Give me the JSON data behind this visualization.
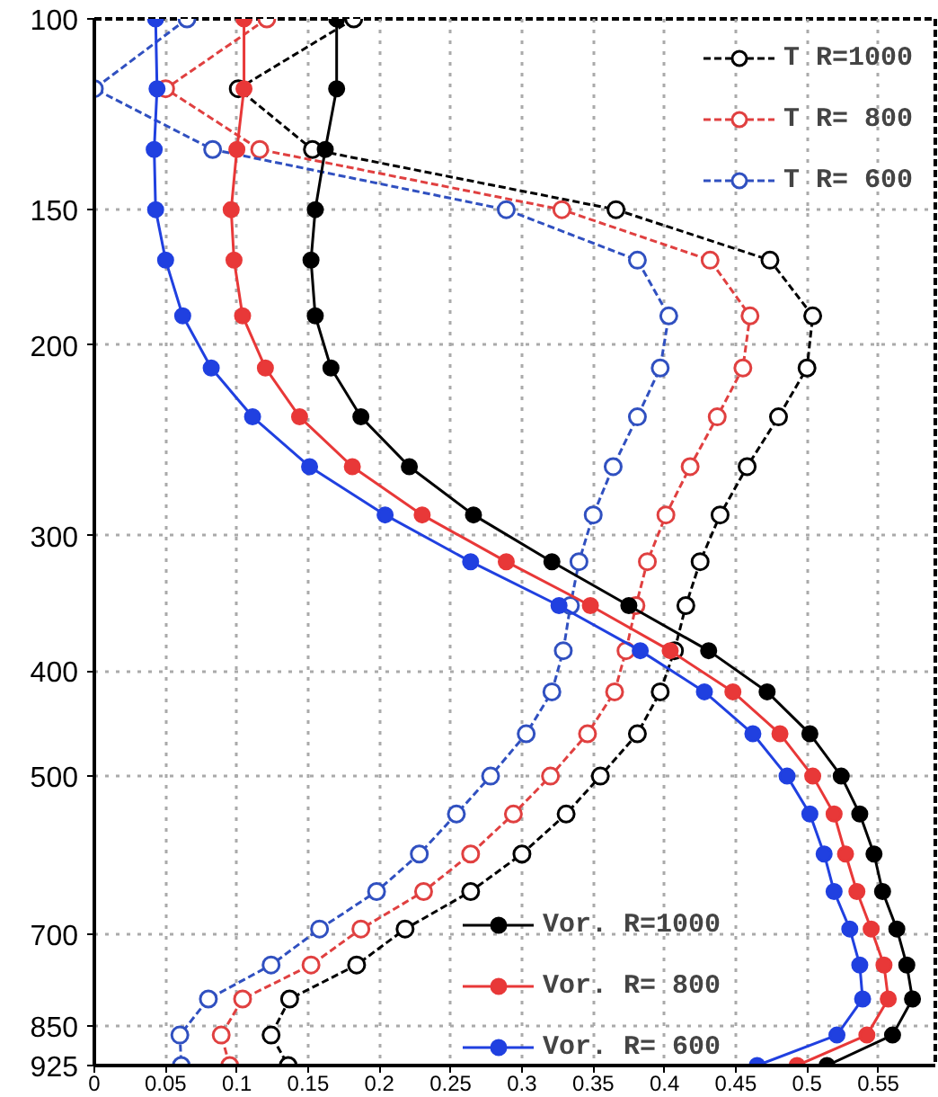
{
  "chart_data": {
    "type": "line",
    "xlim": [
      0,
      0.59
    ],
    "ylim": [
      925,
      100
    ],
    "log": "y",
    "grid": true,
    "legend": "right",
    "marker": "circle",
    "xticks": [
      0,
      0.05,
      0.1,
      0.15,
      0.2,
      0.25,
      0.3,
      0.35,
      0.4,
      0.45,
      0.5,
      0.55
    ],
    "yticks": [
      100,
      150,
      200,
      300,
      400,
      500,
      700,
      850,
      925
    ],
    "series": [
      {
        "name": "T R=1000",
        "color": "#000000",
        "line_style": "dashed",
        "x": [
          0.182,
          0.101,
          0.153,
          0.366,
          0.474,
          0.504,
          0.5,
          0.48,
          0.458,
          0.439,
          0.425,
          0.415,
          0.407,
          0.397,
          0.381,
          0.355,
          0.331,
          0.3,
          0.264,
          0.218,
          0.184,
          0.137,
          0.124,
          0.136
        ],
        "values": [
          100,
          116,
          132,
          150,
          167,
          188,
          210,
          233,
          259,
          287,
          317,
          348,
          383,
          418,
          457,
          500,
          542,
          590,
          639,
          692,
          747,
          803,
          867,
          925
        ]
      },
      {
        "name": "T R= 800",
        "color": "#e04040",
        "line_style": "dashed",
        "x": [
          0.121,
          0.05,
          0.116,
          0.328,
          0.432,
          0.46,
          0.455,
          0.437,
          0.418,
          0.401,
          0.388,
          0.38,
          0.373,
          0.365,
          0.346,
          0.32,
          0.294,
          0.264,
          0.231,
          0.187,
          0.152,
          0.104,
          0.089,
          0.095
        ],
        "values": [
          100,
          116,
          132,
          150,
          167,
          188,
          210,
          233,
          259,
          287,
          317,
          348,
          383,
          418,
          457,
          500,
          542,
          590,
          639,
          692,
          747,
          803,
          867,
          925
        ]
      },
      {
        "name": "T R= 600",
        "color": "#3050c0",
        "line_style": "dashed",
        "x": [
          0.065,
          0.0,
          0.083,
          0.289,
          0.381,
          0.403,
          0.397,
          0.381,
          0.364,
          0.35,
          0.34,
          0.334,
          0.329,
          0.321,
          0.303,
          0.278,
          0.254,
          0.228,
          0.198,
          0.158,
          0.124,
          0.08,
          0.06,
          0.061
        ],
        "values": [
          100,
          116,
          132,
          150,
          167,
          188,
          210,
          233,
          259,
          287,
          317,
          348,
          383,
          418,
          457,
          500,
          542,
          590,
          639,
          692,
          747,
          803,
          867,
          925
        ]
      },
      {
        "name": "Vor. R=1000",
        "color": "#000000",
        "line_style": "solid",
        "x": [
          0.17,
          0.17,
          0.162,
          0.155,
          0.152,
          0.155,
          0.166,
          0.187,
          0.221,
          0.266,
          0.321,
          0.375,
          0.431,
          0.472,
          0.502,
          0.524,
          0.537,
          0.547,
          0.553,
          0.563,
          0.57,
          0.574,
          0.56,
          0.514
        ],
        "values": [
          100,
          116,
          132,
          150,
          167,
          188,
          210,
          233,
          259,
          287,
          317,
          348,
          383,
          418,
          457,
          500,
          542,
          590,
          639,
          692,
          747,
          803,
          867,
          925
        ]
      },
      {
        "name": "Vor. R= 800",
        "color": "#e83838",
        "line_style": "solid",
        "x": [
          0.105,
          0.105,
          0.1,
          0.096,
          0.098,
          0.104,
          0.12,
          0.144,
          0.181,
          0.23,
          0.289,
          0.348,
          0.404,
          0.448,
          0.481,
          0.504,
          0.519,
          0.527,
          0.535,
          0.545,
          0.554,
          0.557,
          0.542,
          0.493
        ],
        "values": [
          100,
          116,
          132,
          150,
          167,
          188,
          210,
          233,
          259,
          287,
          317,
          348,
          383,
          418,
          457,
          500,
          542,
          590,
          639,
          692,
          747,
          803,
          867,
          925
        ]
      },
      {
        "name": "Vor. R= 600",
        "color": "#2040e0",
        "line_style": "solid",
        "x": [
          0.043,
          0.044,
          0.042,
          0.043,
          0.05,
          0.062,
          0.082,
          0.111,
          0.151,
          0.204,
          0.264,
          0.326,
          0.383,
          0.428,
          0.462,
          0.486,
          0.502,
          0.512,
          0.519,
          0.53,
          0.537,
          0.539,
          0.521,
          0.465
        ],
        "values": [
          100,
          116,
          132,
          150,
          167,
          188,
          210,
          233,
          259,
          287,
          317,
          348,
          383,
          418,
          457,
          500,
          542,
          590,
          639,
          692,
          747,
          803,
          867,
          925
        ]
      }
    ]
  }
}
